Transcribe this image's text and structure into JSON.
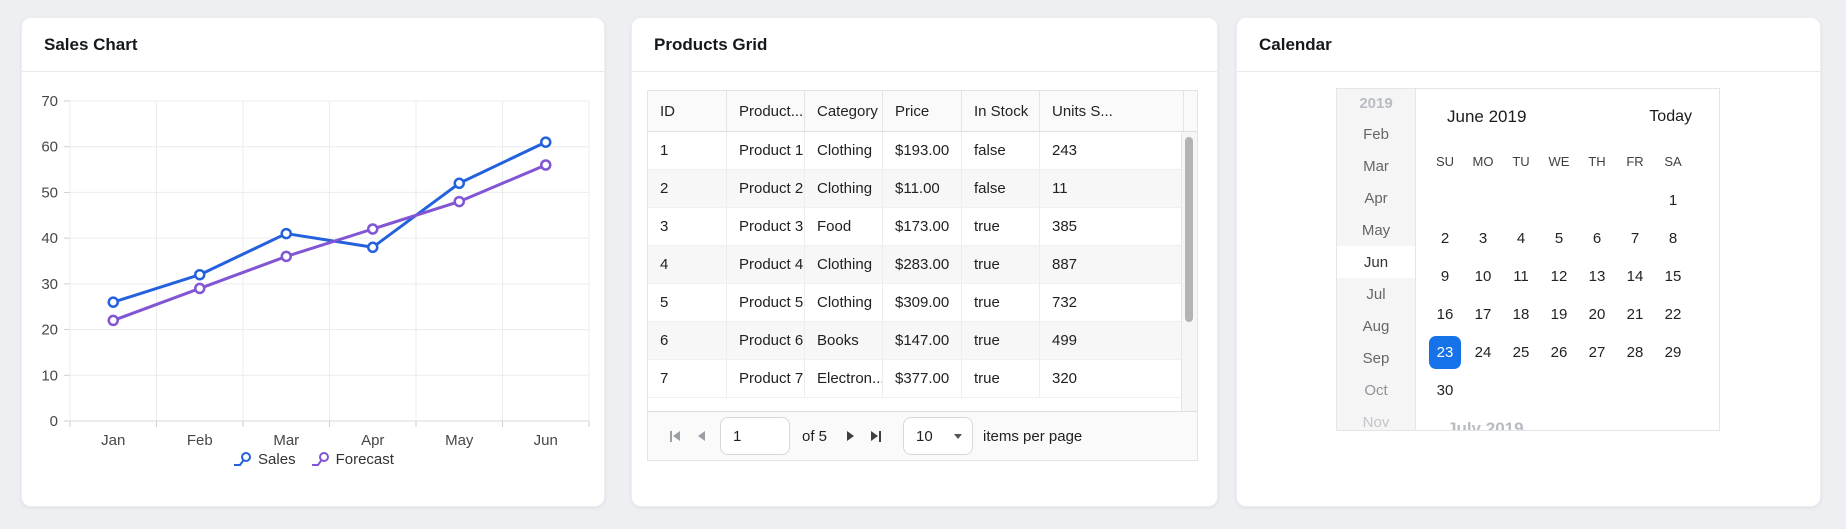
{
  "page": {
    "background": "#edeff3"
  },
  "cards": {
    "sales_chart": {
      "title": "Sales Chart"
    },
    "products_grid": {
      "title": "Products Grid"
    },
    "calendar": {
      "title": "Calendar"
    }
  },
  "chart_data": {
    "type": "line",
    "title": "",
    "xlabel": "",
    "ylabel": "",
    "categories": [
      "Jan",
      "Feb",
      "Mar",
      "Apr",
      "May",
      "Jun"
    ],
    "series": [
      {
        "name": "Sales",
        "color": "#2361dd",
        "values": [
          26,
          32,
          41,
          38,
          52,
          61
        ]
      },
      {
        "name": "Forecast",
        "color": "#8155d3",
        "values": [
          22,
          29,
          36,
          42,
          48,
          56
        ]
      }
    ],
    "ylim": [
      0,
      70
    ],
    "ytick_step": 10,
    "grid": true,
    "legend_position": "bottom",
    "marker": "circle"
  },
  "grid": {
    "columns": [
      "ID",
      "Product...",
      "Category",
      "Price",
      "In Stock",
      "Units S..."
    ],
    "rows": [
      [
        "1",
        "Product 1",
        "Clothing",
        "$193.00",
        "false",
        "243"
      ],
      [
        "2",
        "Product 2",
        "Clothing",
        "$11.00",
        "false",
        "11"
      ],
      [
        "3",
        "Product 3",
        "Food",
        "$173.00",
        "true",
        "385"
      ],
      [
        "4",
        "Product 4",
        "Clothing",
        "$283.00",
        "true",
        "887"
      ],
      [
        "5",
        "Product 5",
        "Clothing",
        "$309.00",
        "true",
        "732"
      ],
      [
        "6",
        "Product 6",
        "Books",
        "$147.00",
        "true",
        "499"
      ],
      [
        "7",
        "Product 7",
        "Electron...",
        "$377.00",
        "true",
        "320"
      ]
    ],
    "pager": {
      "page": "1",
      "of_label": "of 5",
      "page_size": "10",
      "items_label": "items per page"
    }
  },
  "calendar": {
    "view_title": "June 2019",
    "today_label": "Today",
    "months": [
      {
        "label": "2019",
        "state": "year"
      },
      {
        "label": "Feb",
        "state": ""
      },
      {
        "label": "Mar",
        "state": ""
      },
      {
        "label": "Apr",
        "state": ""
      },
      {
        "label": "May",
        "state": ""
      },
      {
        "label": "Jun",
        "state": "selected"
      },
      {
        "label": "Jul",
        "state": ""
      },
      {
        "label": "Aug",
        "state": ""
      },
      {
        "label": "Sep",
        "state": ""
      },
      {
        "label": "Oct",
        "state": "dim"
      },
      {
        "label": "Nov",
        "state": "dimmer"
      }
    ],
    "weekdays": [
      "SU",
      "MO",
      "TU",
      "WE",
      "TH",
      "FR",
      "SA"
    ],
    "weeks": [
      [
        "",
        "",
        "",
        "",
        "",
        "",
        "1"
      ],
      [
        "2",
        "3",
        "4",
        "5",
        "6",
        "7",
        "8"
      ],
      [
        "9",
        "10",
        "11",
        "12",
        "13",
        "14",
        "15"
      ],
      [
        "16",
        "17",
        "18",
        "19",
        "20",
        "21",
        "22"
      ],
      [
        "23",
        "24",
        "25",
        "26",
        "27",
        "28",
        "29"
      ],
      [
        "30",
        "",
        "",
        "",
        "",
        "",
        ""
      ]
    ],
    "selected_day": "23",
    "selected_color": "#1672e8",
    "next_month_label": "July 2019"
  }
}
